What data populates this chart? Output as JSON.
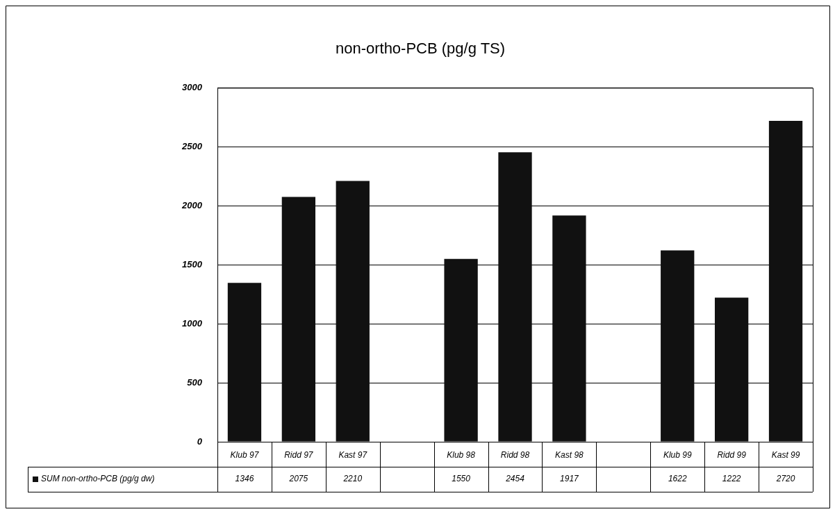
{
  "chart_data": {
    "type": "bar",
    "title": "non-ortho-PCB (pg/g TS)",
    "categories": [
      "Klub 97",
      "Ridd 97",
      "Kast 97",
      null,
      "Klub 98",
      "Ridd 98",
      "Kast 98",
      null,
      "Klub 99",
      "Ridd 99",
      "Kast 99"
    ],
    "series": [
      {
        "name": "SUM non-ortho-PCB (pg/g dw)",
        "color": "#111111",
        "values": [
          1346,
          2075,
          2210,
          null,
          1550,
          2454,
          1917,
          null,
          1622,
          1222,
          2720
        ]
      }
    ],
    "ylim": [
      0,
      3000
    ],
    "yticks": [
      0,
      500,
      1000,
      1500,
      2000,
      2500,
      3000
    ],
    "grid": "y",
    "legend": "bottom left",
    "data_labels": true
  }
}
